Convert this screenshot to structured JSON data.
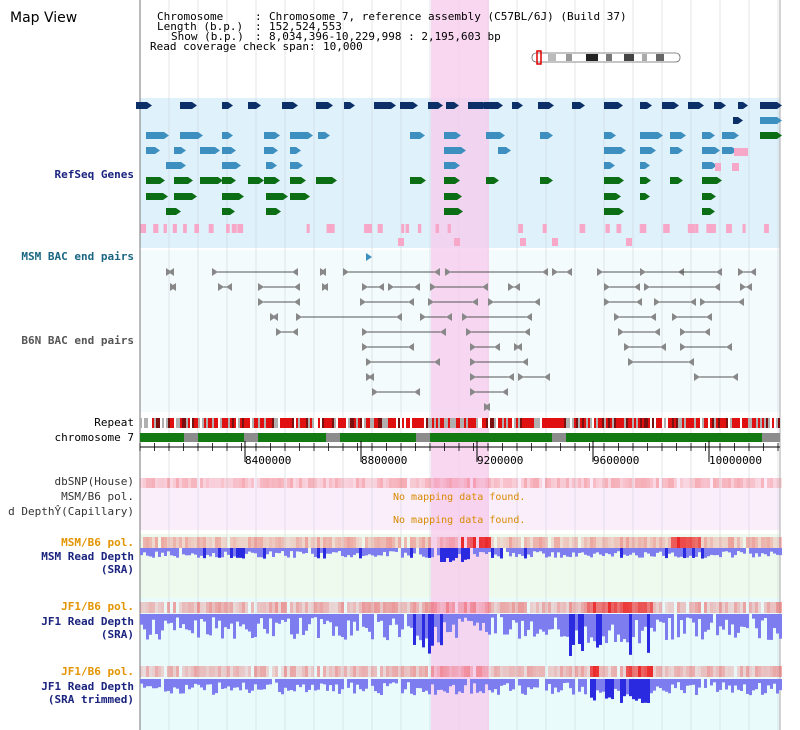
{
  "view": {
    "title": "Map View",
    "chromosome_key": "Chromosome",
    "chromosome_value": "Chromosome 7, reference assembly (C57BL/6J) (Build 37)",
    "length_key": "Length (b.p.)",
    "length_value": "152,524,553",
    "show_key": "Show (b.p.)",
    "show_value": "8,034,396-10,229,998 : 2,195,603 bp",
    "span_key": "Read coverage check span",
    "span_value": "10,000"
  },
  "tracks": {
    "refseq": "RefSeq Genes",
    "msm_bac": "MSM BAC end pairs",
    "b6n_bac": "B6N BAC end pairs",
    "repeat": "Repeat",
    "chromosome": "chromosome 7",
    "dbsnp": "dbSNP(House)",
    "msm_b6_pol": "MSM/B6 pol.",
    "depth_capillary": "d DepthŶ(Capillary)",
    "msm_b6_pol_2": "MSM/B6 pol.",
    "msm_read_depth": "MSM Read Depth",
    "msm_read_depth_sub": "(SRA)",
    "jf1_b6_pol": "JF1/B6 pol.",
    "jf1_read_depth": "JF1 Read Depth",
    "jf1_read_depth_sub": "(SRA)",
    "jf1_b6_pol_2": "JF1/B6 pol.",
    "jf1_read_depth_2": "JF1 Read Depth",
    "jf1_read_depth_2_sub": "(SRA trimmed)"
  },
  "messages": {
    "no_mapping_1": "No mapping data found.",
    "no_mapping_2": "No mapping data found."
  },
  "axis": {
    "ticks": [
      "8400000",
      "8800000",
      "9200000",
      "9600000",
      "10000000"
    ]
  },
  "colors": {
    "refseq_bg": "#dff1fb",
    "highlight": "#f7c9ec",
    "gene_dark": "#0b2f66",
    "gene_mid": "#3d8fbf",
    "gene_green": "#0b6d14",
    "pink": "#f7a8c8",
    "chrom_green": "#137a13",
    "label_blue": "#1a237e",
    "label_orange": "#e39400",
    "label_teal": "#1a6680"
  }
}
